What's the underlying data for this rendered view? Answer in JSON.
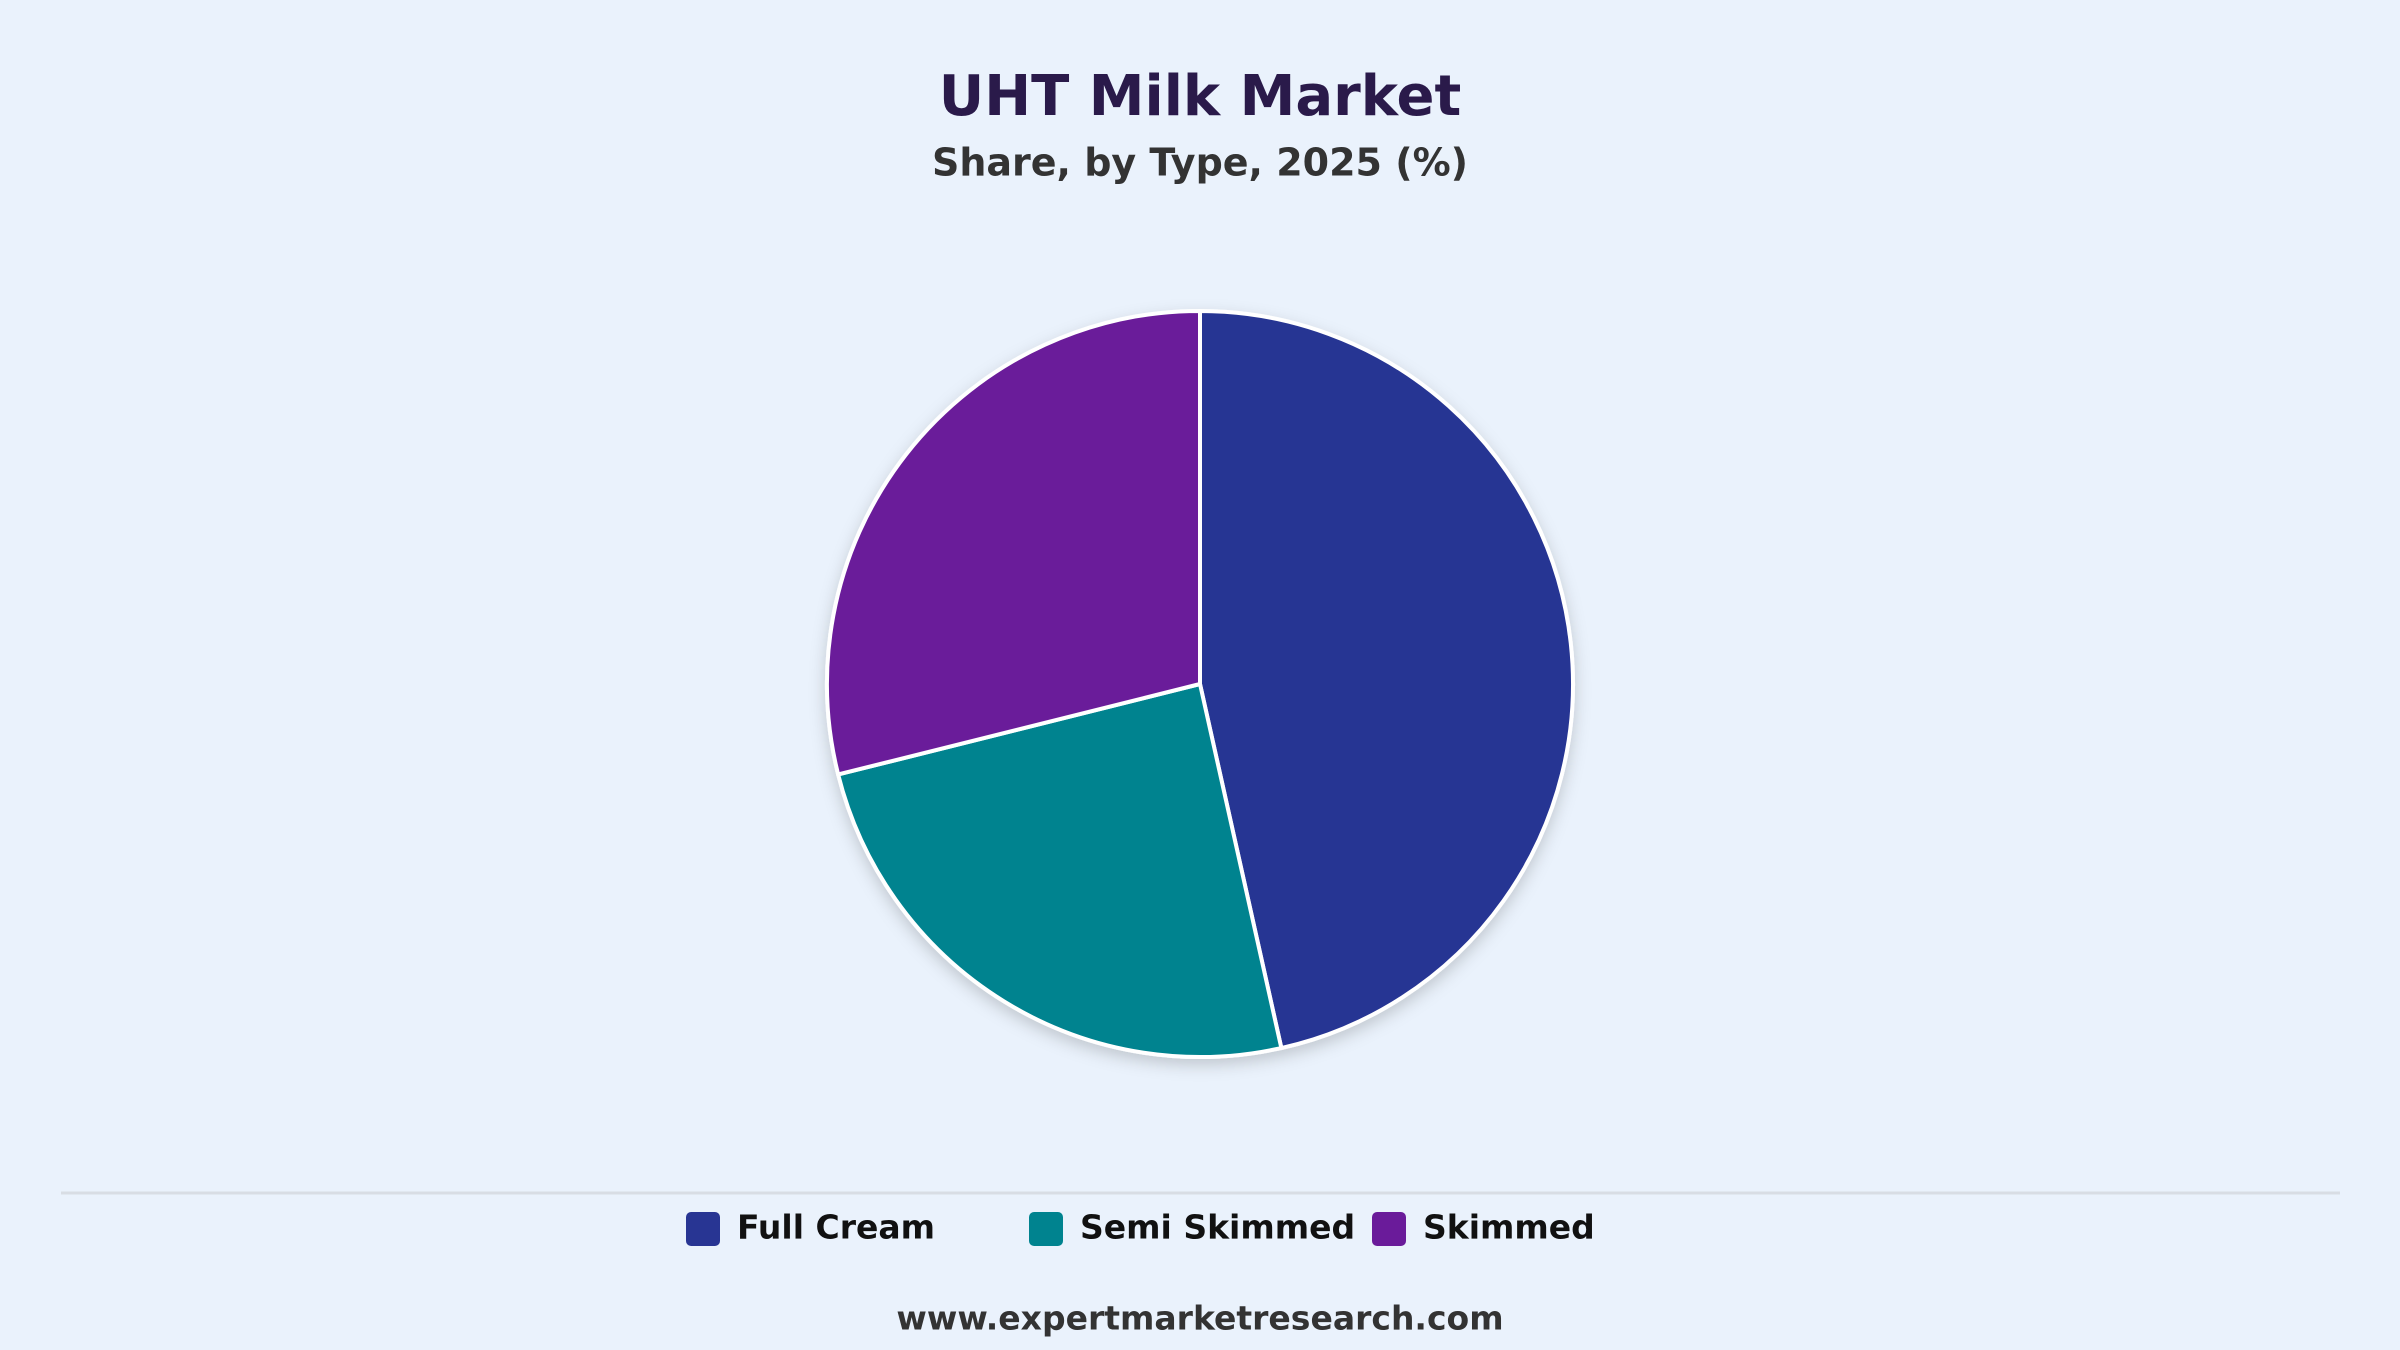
{
  "chart_data": {
    "type": "pie",
    "title": "UHT Milk Market",
    "subtitle": "Share, by Type, 2025 (%)",
    "categories": [
      "Full Cream",
      "Semi Skimmed",
      "Skimmed"
    ],
    "values": [
      46.5,
      24.6,
      28.9
    ],
    "colors": [
      "#283593",
      "#00838f",
      "#6a1b9a"
    ],
    "legend": "bottom"
  },
  "footer": "www.expertmarketresearch.com"
}
